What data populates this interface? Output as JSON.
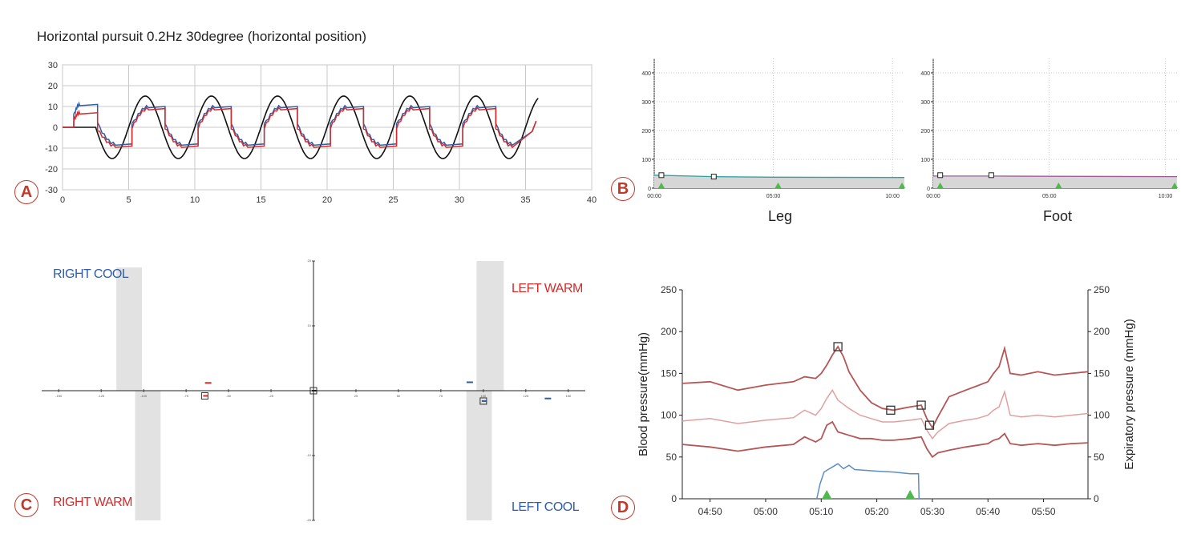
{
  "panels": {
    "A": {
      "badge": "A",
      "title": "Horizontal pursuit 0.2Hz 30degree (horizontal position)"
    },
    "B": {
      "badge": "B"
    },
    "C": {
      "badge": "C",
      "q_tl": "RIGHT COOL",
      "q_tr": "LEFT WARM",
      "q_bl": "RIGHT WARM",
      "q_br": "LEFT COOL"
    },
    "D": {
      "badge": "D"
    }
  },
  "colors": {
    "badge": "#c0392b",
    "blue": "#2e5ca8",
    "red": "#d42b2b",
    "target": "#111111",
    "bp": "#b55555",
    "bp_light": "#e0a0a0",
    "co2": "#5b8ec4",
    "marker": "#4fb84f"
  },
  "chart_data": [
    {
      "panel": "A",
      "type": "line",
      "title": "Horizontal pursuit 0.2Hz 30degree (horizontal position)",
      "xlabel": "",
      "ylabel": "",
      "xlim": [
        0,
        40
      ],
      "ylim": [
        -30,
        30
      ],
      "xticks": [
        "0",
        "5",
        "10",
        "15",
        "20",
        "25",
        "30",
        "35",
        "40"
      ],
      "yticks": [
        "30",
        "20",
        "10",
        "0",
        "-10",
        "-20",
        "-30"
      ],
      "grid": true,
      "target_amplitude": 15,
      "target_frequency_hz": 0.2,
      "target_start": 2.5,
      "target_end": 36,
      "eye_peaks": [
        {
          "x": 1.3,
          "blue": 11,
          "red": 7
        },
        {
          "x": 4.0,
          "blue": -8,
          "red": -9
        },
        {
          "x": 6.5,
          "blue": 10,
          "red": 9
        },
        {
          "x": 9.0,
          "blue": -8,
          "red": -9
        },
        {
          "x": 11.5,
          "blue": 10,
          "red": 9
        },
        {
          "x": 14.0,
          "blue": -8,
          "red": -9
        },
        {
          "x": 16.5,
          "blue": 10,
          "red": 9
        },
        {
          "x": 19.0,
          "blue": -8,
          "red": -9
        },
        {
          "x": 21.5,
          "blue": 10,
          "red": 9
        },
        {
          "x": 24.0,
          "blue": -8,
          "red": -9
        },
        {
          "x": 26.5,
          "blue": 10,
          "red": 9
        },
        {
          "x": 29.0,
          "blue": -8,
          "red": -9
        },
        {
          "x": 31.5,
          "blue": 10,
          "red": 9
        },
        {
          "x": 34.0,
          "blue": -8,
          "red": -9
        }
      ],
      "eye_end": 35.8
    },
    {
      "panel": "B-left",
      "type": "area",
      "xlabel": "Leg",
      "xticks": [
        "00:00",
        "05:00",
        "10:00"
      ],
      "yticks": [
        "400",
        "300",
        "200",
        "100",
        "0"
      ],
      "ylim": [
        0,
        450
      ],
      "xlim": [
        0,
        10.5
      ],
      "values": [
        [
          0,
          45
        ],
        [
          2.5,
          40
        ],
        [
          5,
          38
        ],
        [
          10.5,
          37
        ]
      ],
      "markers": [
        {
          "x": 0.3,
          "y": 45
        },
        {
          "x": 2.5,
          "y": 40
        }
      ],
      "events": [
        0.3,
        5.2,
        10.4
      ]
    },
    {
      "panel": "B-right",
      "type": "area",
      "xlabel": "Foot",
      "xticks": [
        "00:00",
        "05:00",
        "10:00"
      ],
      "yticks": [
        "400",
        "300",
        "200",
        "100",
        "0"
      ],
      "ylim": [
        0,
        450
      ],
      "xlim": [
        0,
        10.5
      ],
      "values": [
        [
          0,
          42
        ],
        [
          2.5,
          42
        ],
        [
          5,
          41
        ],
        [
          10.5,
          40
        ]
      ],
      "markers": [
        {
          "x": 0.3,
          "y": 45
        },
        {
          "x": 2.5,
          "y": 45
        }
      ],
      "events": [
        0.3,
        5.4,
        10.4
      ]
    },
    {
      "panel": "C",
      "type": "scatter",
      "quadrants": [
        "RIGHT COOL",
        "LEFT WARM",
        "RIGHT WARM",
        "LEFT COOL"
      ],
      "xticks": [
        "-150",
        "-125",
        "-100",
        "-75",
        "-50",
        "-25",
        "0",
        "25",
        "50",
        "75",
        "100",
        "125",
        "150"
      ],
      "yticks": [
        "20",
        "10",
        "-10",
        "-20"
      ],
      "xlim": [
        -160,
        160
      ],
      "ylim": [
        -20,
        20
      ],
      "shaded_bands": [
        {
          "x0": -116,
          "x1": -101,
          "y0": 0,
          "y1": 19
        },
        {
          "x0": -105,
          "x1": -90,
          "y0": -20,
          "y1": 0
        },
        {
          "x0": 96,
          "x1": 112,
          "y0": 0,
          "y1": 20
        },
        {
          "x0": 90,
          "x1": 105,
          "y0": -20,
          "y1": 0
        }
      ],
      "points": [
        {
          "x": -62,
          "y": 1.2,
          "color": "red"
        },
        {
          "x": -64,
          "y": -0.8,
          "color": "red",
          "box": true
        },
        {
          "x": 92,
          "y": 1.3,
          "color": "blue"
        },
        {
          "x": 100,
          "y": -1.6,
          "color": "blue",
          "box": true
        },
        {
          "x": 138,
          "y": -1.2,
          "color": "blue"
        },
        {
          "x": 0,
          "y": 0,
          "color": "black",
          "box": true
        }
      ]
    },
    {
      "panel": "D",
      "type": "line",
      "ylabel": "Blood pressure(mmHg)",
      "y2label": "Expiratory pressure (mmHg)",
      "xticks": [
        "04:50",
        "05:00",
        "05:10",
        "05:20",
        "05:30",
        "05:40",
        "05:50"
      ],
      "yticks": [
        "250",
        "200",
        "150",
        "100",
        "50",
        "0"
      ],
      "ylim": [
        0,
        250
      ],
      "xlim": [
        285,
        358
      ],
      "series": [
        {
          "role": "systolic",
          "values": [
            [
              285,
              138
            ],
            [
              290,
              140
            ],
            [
              295,
              130
            ],
            [
              300,
              136
            ],
            [
              305,
              140
            ],
            [
              307,
              146
            ],
            [
              309,
              144
            ],
            [
              310,
              150
            ],
            [
              311,
              160
            ],
            [
              312,
              172
            ],
            [
              313,
              182
            ],
            [
              314,
              170
            ],
            [
              315,
              152
            ],
            [
              317,
              130
            ],
            [
              319,
              115
            ],
            [
              321,
              108
            ],
            [
              323,
              106
            ],
            [
              326,
              110
            ],
            [
              328,
              112
            ],
            [
              329,
              96
            ],
            [
              330,
              85
            ],
            [
              331,
              98
            ],
            [
              333,
              122
            ],
            [
              336,
              130
            ],
            [
              338,
              135
            ],
            [
              340,
              140
            ],
            [
              341,
              150
            ],
            [
              342,
              158
            ],
            [
              343,
              180
            ],
            [
              344,
              150
            ],
            [
              346,
              148
            ],
            [
              349,
              152
            ],
            [
              352,
              148
            ],
            [
              355,
              150
            ],
            [
              358,
              152
            ]
          ]
        },
        {
          "role": "mean",
          "values": [
            [
              285,
              93
            ],
            [
              290,
              96
            ],
            [
              295,
              90
            ],
            [
              300,
              94
            ],
            [
              305,
              97
            ],
            [
              307,
              106
            ],
            [
              309,
              100
            ],
            [
              310,
              108
            ],
            [
              311,
              120
            ],
            [
              312,
              130
            ],
            [
              313,
              118
            ],
            [
              315,
              108
            ],
            [
              317,
              100
            ],
            [
              319,
              96
            ],
            [
              321,
              92
            ],
            [
              323,
              92
            ],
            [
              326,
              94
            ],
            [
              328,
              96
            ],
            [
              329,
              82
            ],
            [
              330,
              72
            ],
            [
              331,
              80
            ],
            [
              333,
              90
            ],
            [
              336,
              94
            ],
            [
              338,
              96
            ],
            [
              340,
              100
            ],
            [
              341,
              106
            ],
            [
              342,
              110
            ],
            [
              343,
              128
            ],
            [
              344,
              100
            ],
            [
              346,
              98
            ],
            [
              349,
              100
            ],
            [
              352,
              98
            ],
            [
              355,
              100
            ],
            [
              358,
              102
            ]
          ]
        },
        {
          "role": "diastolic",
          "values": [
            [
              285,
              65
            ],
            [
              290,
              62
            ],
            [
              295,
              57
            ],
            [
              300,
              62
            ],
            [
              305,
              65
            ],
            [
              307,
              74
            ],
            [
              309,
              68
            ],
            [
              310,
              72
            ],
            [
              311,
              88
            ],
            [
              312,
              92
            ],
            [
              313,
              80
            ],
            [
              315,
              76
            ],
            [
              317,
              72
            ],
            [
              319,
              72
            ],
            [
              321,
              70
            ],
            [
              323,
              70
            ],
            [
              326,
              72
            ],
            [
              328,
              74
            ],
            [
              329,
              60
            ],
            [
              330,
              50
            ],
            [
              331,
              55
            ],
            [
              333,
              58
            ],
            [
              336,
              62
            ],
            [
              338,
              64
            ],
            [
              340,
              66
            ],
            [
              341,
              70
            ],
            [
              342,
              72
            ],
            [
              343,
              78
            ],
            [
              344,
              66
            ],
            [
              346,
              64
            ],
            [
              349,
              66
            ],
            [
              352,
              64
            ],
            [
              355,
              66
            ],
            [
              358,
              67
            ]
          ]
        },
        {
          "role": "expiratory",
          "values": [
            [
              309.2,
              0
            ],
            [
              309.8,
              18
            ],
            [
              310.5,
              32
            ],
            [
              311,
              34
            ],
            [
              312,
              38
            ],
            [
              313,
              42
            ],
            [
              314,
              36
            ],
            [
              315,
              40
            ],
            [
              316,
              35
            ],
            [
              318,
              34
            ],
            [
              320,
              33
            ],
            [
              323,
              32
            ],
            [
              326,
              30
            ],
            [
              327.5,
              30
            ],
            [
              327.6,
              0
            ]
          ]
        }
      ],
      "markers": [
        [
          313,
          182
        ],
        [
          322.5,
          106
        ],
        [
          328,
          112
        ],
        [
          329.5,
          88
        ]
      ],
      "events": [
        311,
        326
      ]
    }
  ]
}
